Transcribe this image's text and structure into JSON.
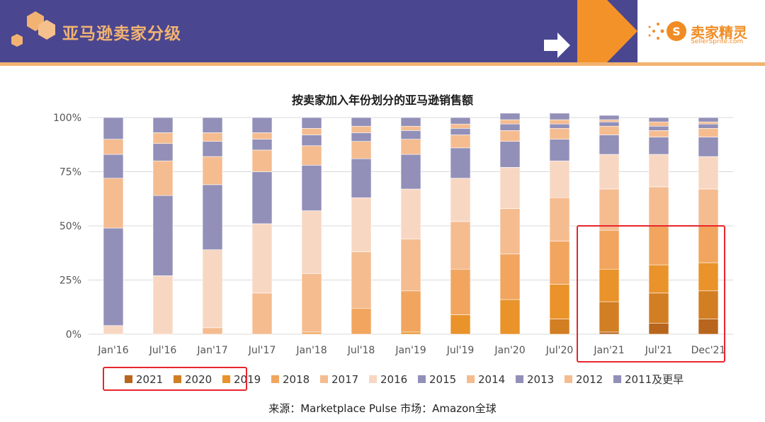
{
  "header": {
    "title": "亚马逊卖家分级",
    "logo_name": "卖家精灵",
    "logo_sub": "SellerSprite.com",
    "bg_color": "#4a4690",
    "accent_color": "#f2b372"
  },
  "source_text": "来源：Marketplace Pulse    市场：Amazon全球",
  "chart_data": {
    "type": "bar",
    "stacked": true,
    "title": "按卖家加入年份划分的亚马逊销售额",
    "categories": [
      "Jan'16",
      "Jul'16",
      "Jan'17",
      "Jul'17",
      "Jan'18",
      "Jul'18",
      "Jan'19",
      "Jul'19",
      "Jan'20",
      "Jul'20",
      "Jan'21",
      "Jul'21",
      "Dec'21"
    ],
    "y_ticks": [
      "0%",
      "25%",
      "50%",
      "75%",
      "100%"
    ],
    "ylim": [
      0,
      100
    ],
    "series": [
      {
        "name": "2021",
        "color": "#b8651d",
        "values": [
          0,
          0,
          0,
          0,
          0,
          0,
          0,
          0,
          0,
          0,
          1,
          5,
          7
        ]
      },
      {
        "name": "2020",
        "color": "#d27e22",
        "values": [
          0,
          0,
          0,
          0,
          0,
          0,
          0,
          0,
          0,
          7,
          14,
          14,
          13
        ]
      },
      {
        "name": "2019",
        "color": "#e9932a",
        "values": [
          0,
          0,
          0,
          0,
          0,
          0,
          1,
          9,
          16,
          16,
          15,
          13,
          13
        ]
      },
      {
        "name": "2018",
        "color": "#f1a55f",
        "values": [
          0,
          0,
          0,
          0,
          1,
          12,
          19,
          21,
          21,
          20,
          18,
          18,
          17
        ]
      },
      {
        "name": "2017",
        "color": "#f5bc90",
        "values": [
          0,
          0,
          3,
          19,
          27,
          26,
          24,
          22,
          21,
          20,
          19,
          18,
          17
        ]
      },
      {
        "name": "2016",
        "color": "#f8d7c2",
        "values": [
          4,
          27,
          36,
          32,
          29,
          25,
          23,
          20,
          19,
          17,
          16,
          15,
          15
        ]
      },
      {
        "name": "2015",
        "color": "#9290b8",
        "values": [
          45,
          37,
          30,
          24,
          21,
          18,
          16,
          14,
          12,
          10,
          9,
          8,
          9
        ]
      },
      {
        "name": "2014",
        "color": "#f5bc90",
        "values": [
          23,
          16,
          13,
          10,
          9,
          8,
          7,
          6,
          5,
          5,
          4,
          3,
          4
        ]
      },
      {
        "name": "2013",
        "color": "#9290b8",
        "values": [
          11,
          8,
          7,
          5,
          5,
          4,
          4,
          3,
          3,
          2,
          2,
          2,
          2
        ]
      },
      {
        "name": "2012",
        "color": "#f5bc90",
        "values": [
          7,
          5,
          4,
          3,
          3,
          3,
          2,
          2,
          2,
          2,
          1,
          2,
          1
        ]
      },
      {
        "name": "2011及更早",
        "color": "#9290b8",
        "values": [
          10,
          7,
          7,
          7,
          5,
          4,
          4,
          3,
          3,
          3,
          2,
          2,
          2
        ]
      }
    ],
    "highlight_color": "#e8262c"
  }
}
